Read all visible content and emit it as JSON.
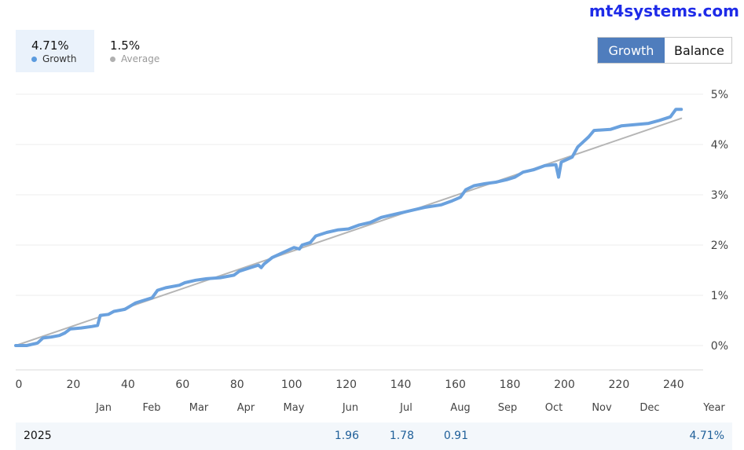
{
  "watermark": "mt4systems.com",
  "stats": {
    "growth": {
      "value": "4.71%",
      "label": "Growth",
      "color": "#5b9bde"
    },
    "average": {
      "value": "1.5%",
      "label": "Average",
      "color": "#b0b0b0"
    }
  },
  "toggle": {
    "growth_label": "Growth",
    "balance_label": "Balance",
    "active": "Growth"
  },
  "colors": {
    "growth_line": "#6aa1de",
    "average_line": "#b5b5b5",
    "grid": "#ececec",
    "axis_text": "#444444",
    "active_button": "#4f7dbd"
  },
  "chart_data": {
    "type": "line",
    "grid": true,
    "xlim": [
      0,
      252
    ],
    "ylim": [
      0,
      5
    ],
    "y_ticks": [
      "0%",
      "1%",
      "2%",
      "3%",
      "4%",
      "5%"
    ],
    "x_ticks": [
      "0",
      "20",
      "40",
      "60",
      "80",
      "100",
      "120",
      "140",
      "160",
      "180",
      "200",
      "220",
      "240"
    ],
    "month_labels": [
      "Jan",
      "Feb",
      "Mar",
      "Apr",
      "May",
      "Jun",
      "Jul",
      "Aug",
      "Sep",
      "Oct",
      "Nov",
      "Dec",
      "Year"
    ],
    "series": [
      {
        "name": "Growth",
        "points": [
          [
            0,
            0.0
          ],
          [
            4,
            0.0
          ],
          [
            8,
            0.05
          ],
          [
            10,
            0.15
          ],
          [
            13,
            0.17
          ],
          [
            16,
            0.2
          ],
          [
            18,
            0.25
          ],
          [
            20,
            0.33
          ],
          [
            24,
            0.35
          ],
          [
            28,
            0.38
          ],
          [
            30,
            0.4
          ],
          [
            31,
            0.6
          ],
          [
            34,
            0.62
          ],
          [
            36,
            0.68
          ],
          [
            40,
            0.72
          ],
          [
            44,
            0.85
          ],
          [
            47,
            0.9
          ],
          [
            50,
            0.95
          ],
          [
            52,
            1.1
          ],
          [
            55,
            1.15
          ],
          [
            60,
            1.2
          ],
          [
            62,
            1.25
          ],
          [
            66,
            1.3
          ],
          [
            70,
            1.33
          ],
          [
            75,
            1.35
          ],
          [
            80,
            1.4
          ],
          [
            82,
            1.48
          ],
          [
            86,
            1.55
          ],
          [
            89,
            1.6
          ],
          [
            90,
            1.55
          ],
          [
            91,
            1.62
          ],
          [
            94,
            1.75
          ],
          [
            98,
            1.85
          ],
          [
            102,
            1.95
          ],
          [
            104,
            1.92
          ],
          [
            105,
            2.0
          ],
          [
            108,
            2.05
          ],
          [
            110,
            2.18
          ],
          [
            114,
            2.25
          ],
          [
            118,
            2.3
          ],
          [
            122,
            2.32
          ],
          [
            126,
            2.4
          ],
          [
            130,
            2.45
          ],
          [
            134,
            2.55
          ],
          [
            138,
            2.6
          ],
          [
            142,
            2.65
          ],
          [
            146,
            2.7
          ],
          [
            150,
            2.75
          ],
          [
            156,
            2.8
          ],
          [
            160,
            2.88
          ],
          [
            163,
            2.95
          ],
          [
            165,
            3.1
          ],
          [
            168,
            3.18
          ],
          [
            172,
            3.22
          ],
          [
            176,
            3.25
          ],
          [
            180,
            3.3
          ],
          [
            183,
            3.35
          ],
          [
            186,
            3.45
          ],
          [
            190,
            3.5
          ],
          [
            194,
            3.58
          ],
          [
            198,
            3.6
          ],
          [
            199,
            3.35
          ],
          [
            200,
            3.65
          ],
          [
            204,
            3.75
          ],
          [
            206,
            3.95
          ],
          [
            210,
            4.15
          ],
          [
            212,
            4.28
          ],
          [
            218,
            4.3
          ],
          [
            222,
            4.37
          ],
          [
            228,
            4.4
          ],
          [
            232,
            4.42
          ],
          [
            236,
            4.48
          ],
          [
            240,
            4.55
          ],
          [
            242,
            4.7
          ],
          [
            244,
            4.7
          ]
        ]
      },
      {
        "name": "Average",
        "points": [
          [
            0,
            0.0
          ],
          [
            244,
            4.52
          ]
        ]
      }
    ]
  },
  "yearly_row": {
    "year": "2025",
    "values": [
      {
        "month": "Jun",
        "value": "1.96"
      },
      {
        "month": "Jul",
        "value": "1.78"
      },
      {
        "month": "Aug",
        "value": "0.91"
      },
      {
        "month": "Year",
        "value": "4.71%"
      }
    ]
  }
}
